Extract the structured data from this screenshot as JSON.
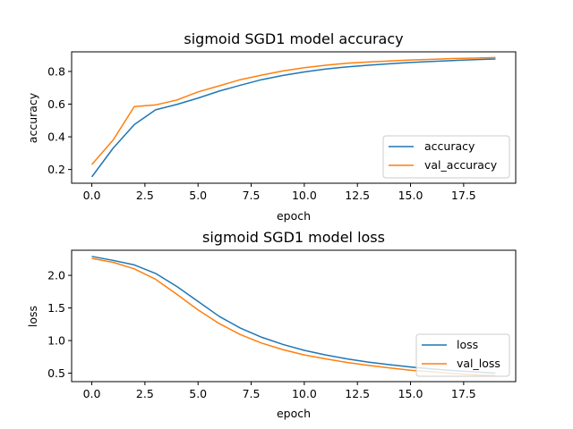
{
  "chart_data": [
    {
      "type": "line",
      "title": "sigmoid SGD1 model accuracy",
      "xlabel": "epoch",
      "ylabel": "accuracy",
      "xlim": [
        -0.95,
        19.95
      ],
      "ylim": [
        0.116,
        0.92
      ],
      "xticks": [
        0.0,
        2.5,
        5.0,
        7.5,
        10.0,
        12.5,
        15.0,
        17.5
      ],
      "xtick_labels": [
        "0.0",
        "2.5",
        "5.0",
        "7.5",
        "10.0",
        "12.5",
        "15.0",
        "17.5"
      ],
      "yticks": [
        0.2,
        0.4,
        0.6,
        0.8
      ],
      "ytick_labels": [
        "0.2",
        "0.4",
        "0.6",
        "0.8"
      ],
      "legend": "lower right",
      "grid": false,
      "x": [
        0,
        1,
        2,
        3,
        4,
        5,
        6,
        7,
        8,
        9,
        10,
        11,
        12,
        13,
        14,
        15,
        16,
        17,
        18,
        19
      ],
      "series": [
        {
          "name": "accuracy",
          "color": "#1f77b4",
          "values": [
            0.155,
            0.33,
            0.475,
            0.565,
            0.598,
            0.637,
            0.68,
            0.716,
            0.75,
            0.776,
            0.797,
            0.815,
            0.828,
            0.838,
            0.847,
            0.855,
            0.861,
            0.867,
            0.872,
            0.876
          ]
        },
        {
          "name": "val_accuracy",
          "color": "#ff7f0e",
          "values": [
            0.23,
            0.38,
            0.585,
            0.595,
            0.625,
            0.675,
            0.712,
            0.75,
            0.778,
            0.803,
            0.823,
            0.838,
            0.85,
            0.858,
            0.864,
            0.87,
            0.874,
            0.879,
            0.882,
            0.885
          ]
        }
      ]
    },
    {
      "type": "line",
      "title": "sigmoid SGD1 model loss",
      "xlabel": "epoch",
      "ylabel": "loss",
      "xlim": [
        -0.95,
        19.95
      ],
      "ylim": [
        0.37,
        2.385
      ],
      "xticks": [
        0.0,
        2.5,
        5.0,
        7.5,
        10.0,
        12.5,
        15.0,
        17.5
      ],
      "xtick_labels": [
        "0.0",
        "2.5",
        "5.0",
        "7.5",
        "10.0",
        "12.5",
        "15.0",
        "17.5"
      ],
      "yticks": [
        0.5,
        1.0,
        1.5,
        2.0
      ],
      "ytick_labels": [
        "0.5",
        "1.0",
        "1.5",
        "2.0"
      ],
      "legend": "lower right",
      "grid": false,
      "x": [
        0,
        1,
        2,
        3,
        4,
        5,
        6,
        7,
        8,
        9,
        10,
        11,
        12,
        13,
        14,
        15,
        16,
        17,
        18,
        19
      ],
      "series": [
        {
          "name": "loss",
          "color": "#1f77b4",
          "values": [
            2.29,
            2.23,
            2.16,
            2.03,
            1.83,
            1.6,
            1.37,
            1.19,
            1.05,
            0.94,
            0.85,
            0.78,
            0.72,
            0.67,
            0.63,
            0.595,
            0.565,
            0.54,
            0.52,
            0.5
          ]
        },
        {
          "name": "val_loss",
          "color": "#ff7f0e",
          "values": [
            2.26,
            2.2,
            2.1,
            1.94,
            1.71,
            1.47,
            1.26,
            1.09,
            0.96,
            0.86,
            0.78,
            0.72,
            0.665,
            0.62,
            0.58,
            0.545,
            0.52,
            0.495,
            0.475,
            0.46
          ]
        }
      ]
    }
  ]
}
